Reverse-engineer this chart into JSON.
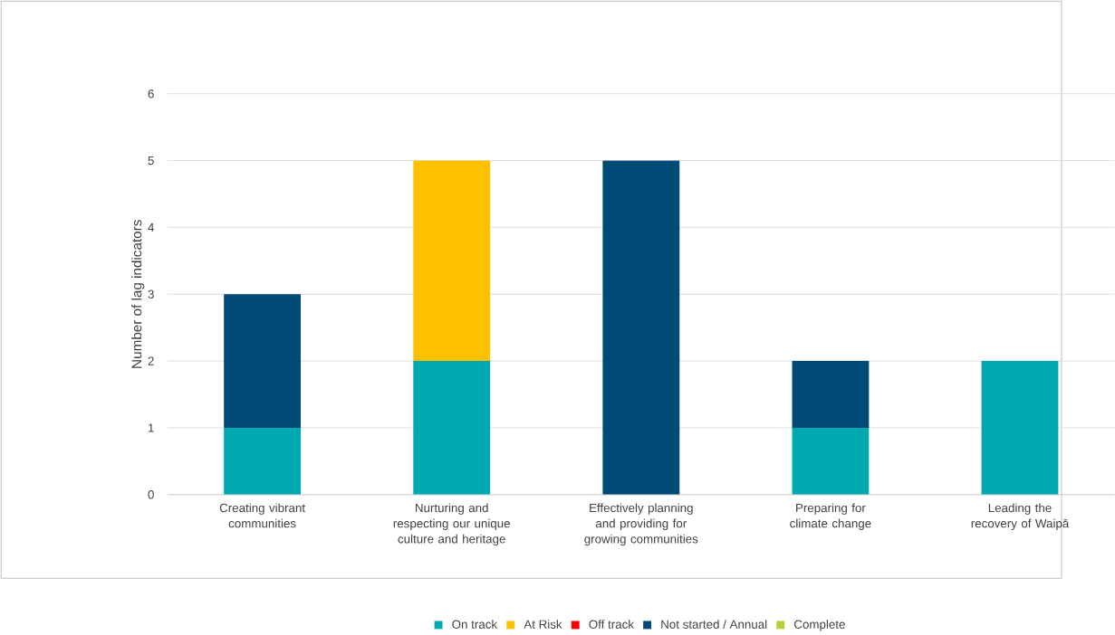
{
  "chart_data": {
    "type": "bar",
    "stacked": true,
    "ylabel": "Number of lag indicators",
    "categories": [
      "Creating vibrant communities",
      "Nurturing and respecting our unique culture and heritage",
      "Effectively planning and providing for growing communities",
      "Preparing for climate change",
      "Leading the recovery of Waipā"
    ],
    "series": [
      {
        "name": "On track",
        "color": "#00a9b0",
        "values": [
          1,
          2,
          0,
          1,
          2
        ]
      },
      {
        "name": "At Risk",
        "color": "#ffc000",
        "values": [
          0,
          3,
          0,
          0,
          0
        ]
      },
      {
        "name": "Off track",
        "color": "#ff0000",
        "values": [
          0,
          0,
          0,
          0,
          0
        ]
      },
      {
        "name": "Not started / Annual",
        "color": "#004a76",
        "values": [
          2,
          0,
          5,
          1,
          0
        ]
      },
      {
        "name": "Complete",
        "color": "#b5d334",
        "values": [
          0,
          0,
          0,
          0,
          0
        ]
      }
    ],
    "ylim": [
      0,
      6
    ],
    "yticks": [
      0,
      1,
      2,
      3,
      4,
      5,
      6
    ],
    "grid": "y",
    "legend": "bottom"
  }
}
